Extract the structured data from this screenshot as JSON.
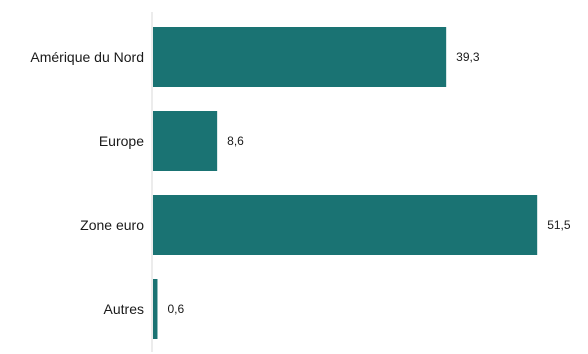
{
  "chart_data": {
    "type": "bar",
    "orientation": "horizontal",
    "categories": [
      "Amérique du Nord",
      "Europe",
      "Zone euro",
      "Autres"
    ],
    "values": [
      39.3,
      8.6,
      51.5,
      0.6
    ],
    "value_labels": [
      "39,3",
      "8,6",
      "51,5",
      "0,6"
    ],
    "title": "",
    "xlabel": "",
    "ylabel": "",
    "xlim": [
      0,
      55
    ],
    "grid": false,
    "legend": "none",
    "bar_color": "#1a7373",
    "axis_color": "#d9d9d9"
  }
}
